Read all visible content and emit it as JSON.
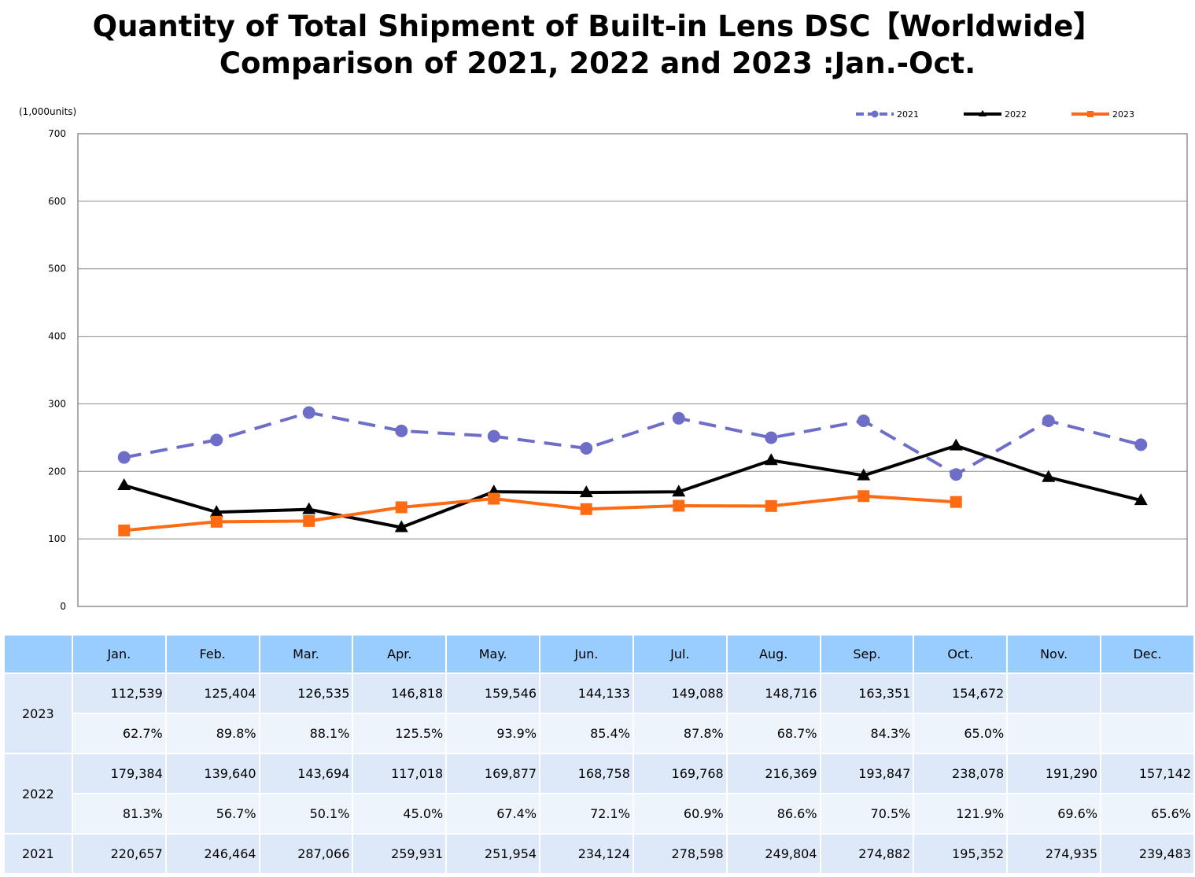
{
  "title": {
    "line1": "Quantity of Total Shipment of Built-in Lens DSC【Worldwide】",
    "line2": "Comparison of 2021, 2022 and 2023 :Jan.-Oct."
  },
  "chart_data": {
    "type": "line",
    "unit_label": "(1,000units)",
    "ylim": [
      0,
      700
    ],
    "yticks": [
      0,
      100,
      200,
      300,
      400,
      500,
      600,
      700
    ],
    "grid": true,
    "legend_position": "top-right",
    "categories": [
      "Jan.",
      "Feb.",
      "Mar.",
      "Apr.",
      "May.",
      "Jun.",
      "Jul.",
      "Aug.",
      "Sep.",
      "Oct.",
      "Nov.",
      "Dec."
    ],
    "series": [
      {
        "name": "2021",
        "color": "#6e6ec8",
        "style": "dashed",
        "marker": "circle",
        "values": [
          220.657,
          246.464,
          287.066,
          259.931,
          251.954,
          234.124,
          278.598,
          249.804,
          274.882,
          195.352,
          274.935,
          239.483
        ]
      },
      {
        "name": "2022",
        "color": "#000000",
        "style": "solid",
        "marker": "triangle",
        "values": [
          179.384,
          139.64,
          143.694,
          117.018,
          169.877,
          168.758,
          169.768,
          216.369,
          193.847,
          238.078,
          191.29,
          157.142
        ]
      },
      {
        "name": "2023",
        "color": "#ff6a13",
        "style": "solid",
        "marker": "square",
        "values": [
          112.539,
          125.404,
          126.535,
          146.818,
          159.546,
          144.133,
          149.088,
          148.716,
          163.351,
          154.672,
          null,
          null
        ]
      }
    ]
  },
  "table": {
    "header": [
      "",
      "Jan.",
      "Feb.",
      "Mar.",
      "Apr.",
      "May.",
      "Jun.",
      "Jul.",
      "Aug.",
      "Sep.",
      "Oct.",
      "Nov.",
      "Dec."
    ],
    "rows": [
      {
        "label": "2023",
        "values": [
          "112,539",
          "125,404",
          "126,535",
          "146,818",
          "159,546",
          "144,133",
          "149,088",
          "148,716",
          "163,351",
          "154,672",
          "",
          ""
        ],
        "ratios": [
          "62.7%",
          "89.8%",
          "88.1%",
          "125.5%",
          "93.9%",
          "85.4%",
          "87.8%",
          "68.7%",
          "84.3%",
          "65.0%",
          "",
          ""
        ]
      },
      {
        "label": "2022",
        "values": [
          "179,384",
          "139,640",
          "143,694",
          "117,018",
          "169,877",
          "168,758",
          "169,768",
          "216,369",
          "193,847",
          "238,078",
          "191,290",
          "157,142"
        ],
        "ratios": [
          "81.3%",
          "56.7%",
          "50.1%",
          "45.0%",
          "67.4%",
          "72.1%",
          "60.9%",
          "86.6%",
          "70.5%",
          "121.9%",
          "69.6%",
          "65.6%"
        ]
      },
      {
        "label": "2021",
        "values": [
          "220,657",
          "246,464",
          "287,066",
          "259,931",
          "251,954",
          "234,124",
          "278,598",
          "249,804",
          "274,882",
          "195,352",
          "274,935",
          "239,483"
        ]
      }
    ]
  }
}
